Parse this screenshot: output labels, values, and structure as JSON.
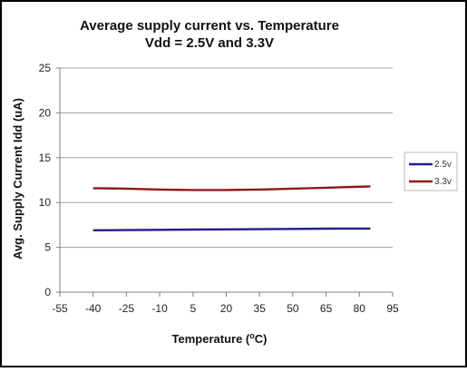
{
  "chart_data": {
    "type": "line",
    "title_line1": "Average supply current  vs. Temperature",
    "title_line2": "Vdd = 2.5V and 3.3V",
    "xlabel_main": "Temperature (",
    "xlabel_sup": "o",
    "xlabel_tail": "C)",
    "ylabel": "Avg. Supply Current Idd (uA)",
    "xlim": [
      -55,
      95
    ],
    "ylim": [
      0,
      25
    ],
    "x_ticks": [
      "-55",
      "-40",
      "-25",
      "-10",
      "5",
      "20",
      "35",
      "50",
      "65",
      "80",
      "95"
    ],
    "y_ticks": [
      "0",
      "5",
      "10",
      "15",
      "20",
      "25"
    ],
    "grid": "horizontal",
    "legend_position": "right",
    "series": [
      {
        "name": "2.5v",
        "color": "#1f1f8c",
        "x": [
          -40,
          -25,
          -10,
          5,
          20,
          35,
          50,
          65,
          85
        ],
        "y": [
          6.9,
          6.92,
          6.95,
          6.98,
          7.0,
          7.02,
          7.05,
          7.08,
          7.1
        ]
      },
      {
        "name": "3.3v",
        "color": "#8b1a1a",
        "x": [
          -40,
          -25,
          -10,
          5,
          20,
          35,
          50,
          65,
          85
        ],
        "y": [
          11.6,
          11.55,
          11.45,
          11.4,
          11.4,
          11.45,
          11.55,
          11.65,
          11.8
        ]
      }
    ]
  }
}
